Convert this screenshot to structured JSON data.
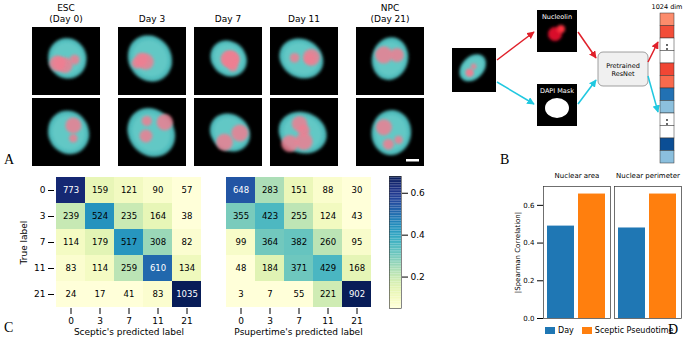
{
  "panel_labels": [
    "A",
    "B",
    "C",
    "D"
  ],
  "panel_A": {
    "columns": [
      [
        "ESC",
        "(Day 0)"
      ],
      [
        "Day 3"
      ],
      [
        "Day 7"
      ],
      [
        "Day 11"
      ],
      [
        "NPC",
        "(Day 21)"
      ]
    ]
  },
  "panel_B": {
    "inputs": [
      "Nucleolin",
      "DAPI Mask"
    ],
    "model": "Pretrained ResNet",
    "output": "1024 dim"
  },
  "chart_data": [
    {
      "type": "heatmap",
      "x_label": "Sceptic's predicted label",
      "y_label": "True label",
      "x_categories": [
        0,
        3,
        7,
        11,
        21
      ],
      "y_categories": [
        0,
        3,
        7,
        11,
        21
      ],
      "cells": [
        [
          773,
          159,
          121,
          90,
          57
        ],
        [
          239,
          524,
          235,
          164,
          38
        ],
        [
          114,
          179,
          517,
          308,
          82
        ],
        [
          83,
          114,
          259,
          610,
          134
        ],
        [
          24,
          17,
          41,
          83,
          1035
        ]
      ],
      "data_labels": true
    },
    {
      "type": "heatmap",
      "x_label": "Psupertime's predicted label",
      "x_categories": [
        0,
        3,
        7,
        11,
        21
      ],
      "y_categories": [
        0,
        3,
        7,
        11,
        21
      ],
      "cells": [
        [
          648,
          283,
          151,
          88,
          30
        ],
        [
          355,
          423,
          255,
          124,
          43
        ],
        [
          99,
          364,
          382,
          260,
          95
        ],
        [
          48,
          184,
          371,
          429,
          168
        ],
        [
          3,
          7,
          55,
          221,
          902
        ]
      ],
      "data_labels": true,
      "tick_labels": "x",
      "color_bar": {
        "range": [
          0.05,
          0.68
        ],
        "ticks": [
          0.2,
          0.4,
          0.6
        ]
      }
    },
    {
      "type": "bar",
      "categories": [
        "Nuclear area",
        "Nuclear perimeter"
      ],
      "series": [
        {
          "name": "Day",
          "color": "#1f77b4",
          "values": [
            0.49,
            0.48
          ]
        },
        {
          "name": "Sceptic Pseudotime",
          "color": "#ff7f0e",
          "values": [
            0.66,
            0.66
          ]
        }
      ],
      "y_label": "|Spearman Correlation|",
      "ylim": [
        0,
        0.7
      ],
      "yticks": [
        {
          "value": 0,
          "label": "0.0"
        },
        0.2,
        0.4,
        0.6
      ],
      "legend": "bottom"
    }
  ]
}
